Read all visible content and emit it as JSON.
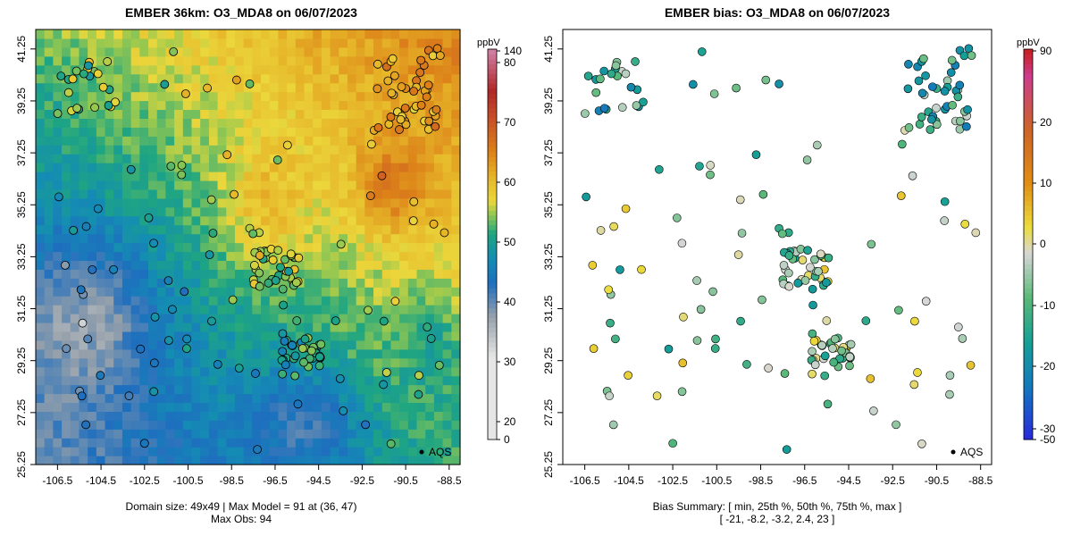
{
  "left_panel": {
    "title": "EMBER 36km: O3_MDA8 on 06/07/2023",
    "footer_line1": "Domain size: 49x49 | Max Model = 91 at (36, 47)",
    "footer_line2": "Max Obs: 94",
    "colorbar_unit": "ppbV",
    "legend_label": "AQS"
  },
  "right_panel": {
    "title": "EMBER bias: O3_MDA8 on 06/07/2023",
    "footer_line1": "Bias Summary: [ min, 25th %, 50th %, 75th %, max ]",
    "footer_line2": "[ -21,   -8.2,   -3.2,   2.4,   23 ]",
    "colorbar_unit": "ppbV",
    "legend_label": "AQS"
  },
  "chart_data": [
    {
      "type": "heatmap",
      "title": "EMBER 36km: O3_MDA8 on 06/07/2023",
      "variable": "O3_MDA8",
      "units": "ppbV",
      "date": "06/07/2023",
      "x_ticks": [
        -106.5,
        -104.5,
        -102.5,
        -100.5,
        -98.5,
        -96.5,
        -94.5,
        -92.5,
        -90.5,
        -88.5
      ],
      "y_ticks": [
        25.25,
        27.25,
        29.25,
        31.25,
        33.25,
        35.25,
        37.25,
        39.25,
        41.25
      ],
      "xlim": [
        -107.5,
        -88.0
      ],
      "ylim": [
        25.25,
        42.0
      ],
      "colorbar_ticks": [
        0,
        20,
        30,
        40,
        50,
        60,
        70,
        80,
        140
      ],
      "colors": {
        "low": "#f5f5f5",
        "mid_low": "#1c7fc2",
        "mid": "#20a88a",
        "mid_high": "#e6d23c",
        "high": "#d98a1c",
        "max": "#b22a2a",
        "extreme": "#d08aa8"
      },
      "domain_size": "49x49",
      "max_model": 91,
      "max_model_cell": [
        36,
        47
      ],
      "max_obs": 94,
      "network": "AQS"
    },
    {
      "type": "scatter",
      "title": "EMBER bias: O3_MDA8 on 06/07/2023",
      "variable": "O3_MDA8 bias",
      "units": "ppbV",
      "x_ticks": [
        -106.5,
        -104.5,
        -102.5,
        -100.5,
        -98.5,
        -96.5,
        -94.5,
        -92.5,
        -90.5,
        -88.5
      ],
      "y_ticks": [
        25.25,
        27.25,
        29.25,
        31.25,
        33.25,
        35.25,
        37.25,
        39.25,
        41.25
      ],
      "xlim": [
        -107.5,
        -88.0
      ],
      "ylim": [
        25.25,
        42.0
      ],
      "colorbar_ticks": [
        -50,
        -30,
        -20,
        -10,
        0,
        10,
        20,
        90
      ],
      "colors": {
        "neg_extreme": "#6a1fa0",
        "neg_strong": "#1f2fd8",
        "neg": "#1aa0a0",
        "neg_mild": "#55b36b",
        "zero": "#d8d8d8",
        "pos_mild": "#e8d840",
        "pos": "#e07a10",
        "pos_strong": "#d0307a",
        "pos_extreme": "#c81818"
      },
      "bias_summary": {
        "min": -21,
        "p25": -8.2,
        "median": -3.2,
        "p75": 2.4,
        "max": 23
      },
      "network": "AQS"
    }
  ]
}
